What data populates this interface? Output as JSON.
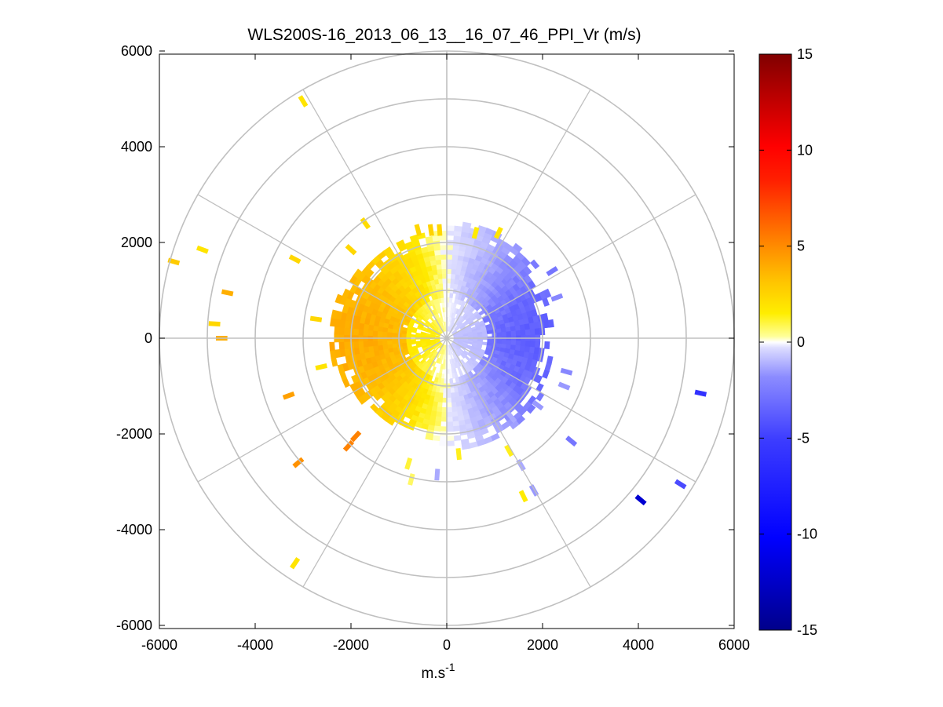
{
  "chart_data": {
    "type": "heatmap",
    "subtype": "polar-ppi",
    "title": "WLS200S-16_2013_06_13__16_07_46_PPI_Vr (m/s)",
    "xlabel": "m.s",
    "xlabel_superscript": "-1",
    "ylabel": "",
    "xlim": [
      -6000,
      6000
    ],
    "ylim": [
      -6000,
      6000
    ],
    "xticks": [
      "-6000",
      "-4000",
      "-2000",
      "0",
      "2000",
      "4000",
      "6000"
    ],
    "yticks": [
      "6000",
      "4000",
      "2000",
      "0",
      "-2000",
      "-4000",
      "-6000"
    ],
    "xtick_values": [
      -6000,
      -4000,
      -2000,
      0,
      2000,
      4000,
      6000
    ],
    "ytick_values": [
      6000,
      4000,
      2000,
      0,
      -2000,
      -4000,
      -6000
    ],
    "grid": {
      "range_rings": [
        1000,
        2000,
        3000,
        4000,
        5000,
        6000
      ],
      "azimuth_spokes_deg": [
        0,
        30,
        60,
        90,
        120,
        150,
        180,
        210,
        240,
        270,
        300,
        330
      ],
      "color": "#c0c0c0"
    },
    "colorbar": {
      "location": "right",
      "clim": [
        -15,
        15
      ],
      "ticks": [
        "15",
        "10",
        "5",
        "0",
        "-5",
        "-10",
        "-15"
      ],
      "tick_values": [
        15,
        10,
        5,
        0,
        -5,
        -10,
        -15
      ],
      "colormap": "blue-white-yellow-red"
    },
    "velocity_field": {
      "description": "radial velocity by azimuth (deg, clockwise from north) and range (m)",
      "azimuth_step_deg": 4,
      "range_gate_m": 100,
      "core_max_range_m": 2300,
      "positive_sector_deg": [
        180,
        360
      ],
      "negative_sector_deg": [
        0,
        180
      ],
      "positive_peak_ms": 3.6,
      "negative_peak_ms": -4.2
    },
    "scattered_points": [
      {
        "x": 1080,
        "y": 2200,
        "v": 1.5
      },
      {
        "x": -600,
        "y": 2260,
        "v": 2.0
      },
      {
        "x": -330,
        "y": 2260,
        "v": 2.2
      },
      {
        "x": -150,
        "y": 2260,
        "v": 2.0
      },
      {
        "x": 600,
        "y": 2200,
        "v": 1.2
      },
      {
        "x": -1700,
        "y": 2400,
        "v": 1.8
      },
      {
        "x": -2000,
        "y": 1850,
        "v": 2.0
      },
      {
        "x": -3000,
        "y": 4950,
        "v": 1.5
      },
      {
        "x": -5100,
        "y": 1850,
        "v": 1.5
      },
      {
        "x": -5700,
        "y": 1600,
        "v": 2.5
      },
      {
        "x": -3170,
        "y": 1650,
        "v": 2.0
      },
      {
        "x": -4580,
        "y": 950,
        "v": 3.5
      },
      {
        "x": -4850,
        "y": 300,
        "v": 2.0
      },
      {
        "x": -4700,
        "y": 0,
        "v": 3.5
      },
      {
        "x": -2730,
        "y": 400,
        "v": 2.0
      },
      {
        "x": -2620,
        "y": -600,
        "v": 1.5
      },
      {
        "x": -3300,
        "y": -1200,
        "v": 4.0
      },
      {
        "x": -1900,
        "y": -2050,
        "v": 5.0
      },
      {
        "x": -2050,
        "y": -2250,
        "v": 5.0
      },
      {
        "x": -3100,
        "y": -2600,
        "v": 4.5
      },
      {
        "x": -800,
        "y": -2620,
        "v": 0.8
      },
      {
        "x": -740,
        "y": -2950,
        "v": 0.5
      },
      {
        "x": -3170,
        "y": -4700,
        "v": 1.5
      },
      {
        "x": 1300,
        "y": 1300,
        "v": -3.0
      },
      {
        "x": 2200,
        "y": 1400,
        "v": -3.5
      },
      {
        "x": 2300,
        "y": 850,
        "v": -3.0
      },
      {
        "x": 2500,
        "y": -700,
        "v": -3.0
      },
      {
        "x": 2450,
        "y": -1000,
        "v": -2.5
      },
      {
        "x": 1900,
        "y": -1400,
        "v": -2.5
      },
      {
        "x": 1350,
        "y": -1650,
        "v": -2.0
      },
      {
        "x": 2600,
        "y": -2150,
        "v": -3.5
      },
      {
        "x": 1300,
        "y": -2350,
        "v": 1.0
      },
      {
        "x": 1550,
        "y": -2650,
        "v": -2.0
      },
      {
        "x": 1820,
        "y": -3180,
        "v": -2.5
      },
      {
        "x": 1600,
        "y": -3300,
        "v": 1.2
      },
      {
        "x": 5300,
        "y": -1150,
        "v": -6.0
      },
      {
        "x": 4880,
        "y": -3050,
        "v": -5.0
      },
      {
        "x": 4050,
        "y": -3380,
        "v": -12.0
      },
      {
        "x": -200,
        "y": -2850,
        "v": -2.0
      },
      {
        "x": 250,
        "y": -2420,
        "v": 1.0
      }
    ]
  }
}
